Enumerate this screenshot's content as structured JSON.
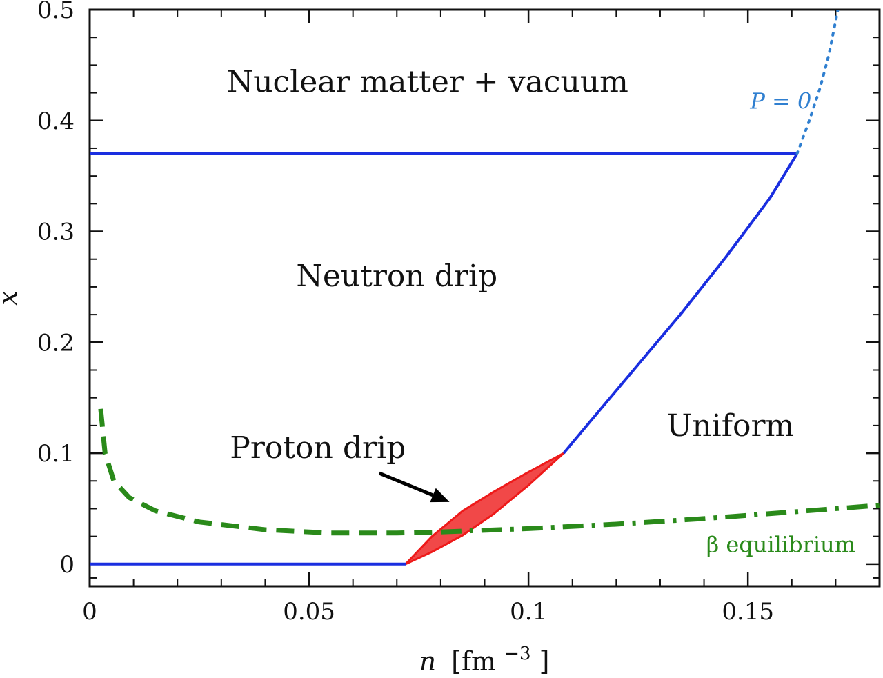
{
  "chart_data": {
    "type": "line",
    "xlabel": {
      "var": "n",
      "unit": "[fm",
      "exp": "−3",
      "close": "]"
    },
    "ylabel": "x",
    "xlim": [
      0,
      0.18
    ],
    "ylim": [
      -0.02,
      0.5
    ],
    "x_ticks": [
      0,
      0.05,
      0.1,
      0.15
    ],
    "x_tick_labels": [
      "0",
      "0.05",
      "0.1",
      "0.15"
    ],
    "y_ticks": [
      0,
      0.1,
      0.2,
      0.3,
      0.4,
      0.5
    ],
    "y_tick_labels": [
      "0",
      "0.1",
      "0.2",
      "0.3",
      "0.4",
      "0.5"
    ],
    "x_minor_step": 0.01,
    "y_minor_step": 0.025,
    "grid": false,
    "colors": {
      "boundary": "#1a2ee0",
      "p0": "#2f7fd0",
      "beta": "#2a8a1a",
      "proton": "#ee1a1a"
    },
    "series": [
      {
        "style": "solid",
        "color": "#1a2ee0",
        "points": [
          [
            0,
            0.37
          ],
          [
            0.1612,
            0.37
          ]
        ]
      },
      {
        "style": "solid",
        "color": "#1a2ee0",
        "points": [
          [
            0,
            0
          ],
          [
            0.072,
            0
          ]
        ]
      },
      {
        "style": "solid",
        "color": "#1a2ee0",
        "points": [
          [
            0.108,
            0.1
          ],
          [
            0.115,
            0.133
          ],
          [
            0.125,
            0.18
          ],
          [
            0.135,
            0.227
          ],
          [
            0.145,
            0.277
          ],
          [
            0.155,
            0.33
          ],
          [
            0.1612,
            0.37
          ]
        ]
      },
      {
        "style": "dotted",
        "color": "#2f7fd0",
        "points": [
          [
            0.1612,
            0.37
          ],
          [
            0.164,
            0.4
          ],
          [
            0.1665,
            0.43
          ],
          [
            0.1685,
            0.46
          ],
          [
            0.1705,
            0.5
          ]
        ]
      },
      {
        "style": "dashed",
        "color": "#2a8a1a",
        "points": [
          [
            0.0025,
            0.14
          ],
          [
            0.0035,
            0.1
          ],
          [
            0.0055,
            0.075
          ],
          [
            0.009,
            0.06
          ],
          [
            0.015,
            0.048
          ],
          [
            0.025,
            0.038
          ],
          [
            0.04,
            0.031
          ],
          [
            0.055,
            0.028
          ],
          [
            0.07,
            0.028
          ],
          [
            0.08,
            0.029
          ]
        ]
      },
      {
        "style": "dashdot",
        "color": "#2a8a1a",
        "points": [
          [
            0.08,
            0.029
          ],
          [
            0.1,
            0.032
          ],
          [
            0.12,
            0.036
          ],
          [
            0.14,
            0.041
          ],
          [
            0.16,
            0.047
          ],
          [
            0.18,
            0.053
          ]
        ]
      }
    ],
    "proton_region": {
      "color": "#ee1a1a",
      "upper": [
        [
          0.072,
          0
        ],
        [
          0.078,
          0.025
        ],
        [
          0.085,
          0.048
        ],
        [
          0.092,
          0.065
        ],
        [
          0.1,
          0.083
        ],
        [
          0.108,
          0.1
        ]
      ],
      "lower": [
        [
          0.108,
          0.1
        ],
        [
          0.1,
          0.071
        ],
        [
          0.092,
          0.045
        ],
        [
          0.085,
          0.026
        ],
        [
          0.078,
          0.011
        ],
        [
          0.072,
          0
        ]
      ]
    },
    "arrow": {
      "from": [
        0.066,
        0.082
      ],
      "to": [
        0.082,
        0.056
      ]
    },
    "annotations": [
      {
        "id": "nuclear",
        "text": "Nuclear matter + vacuum",
        "x": 0.077,
        "y": 0.435
      },
      {
        "id": "neutron",
        "text": "Neutron drip",
        "x": 0.07,
        "y": 0.26
      },
      {
        "id": "uniform",
        "text": "Uniform",
        "x": 0.146,
        "y": 0.125
      },
      {
        "id": "proton",
        "text": "Proton drip",
        "x": 0.052,
        "y": 0.105
      },
      {
        "id": "beta",
        "text": "β equilibrium",
        "x": 0.1575,
        "y": 0.02
      },
      {
        "id": "p0",
        "text": "P = 0",
        "x": 0.1575,
        "y": 0.42
      }
    ]
  }
}
